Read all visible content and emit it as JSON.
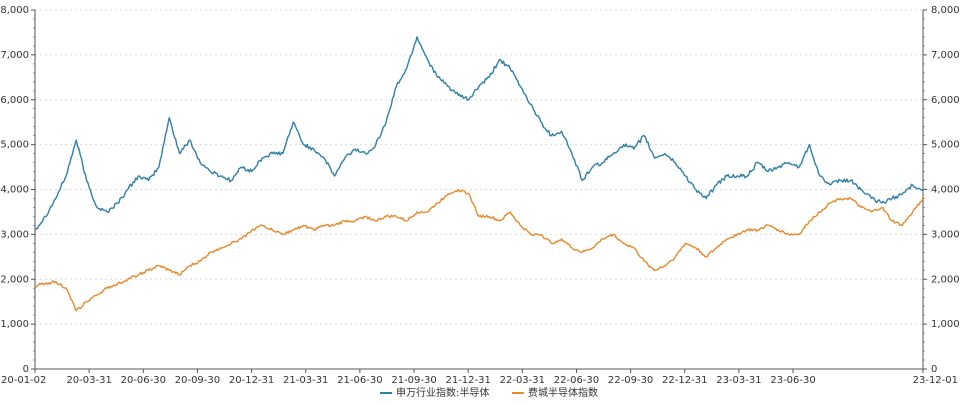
{
  "chart_data": {
    "type": "line",
    "title": "",
    "xlabel": "",
    "ylabel": "",
    "ylim": [
      0,
      8000
    ],
    "y_ticks": [
      "0",
      "1,000",
      "2,000",
      "3,000",
      "4,000",
      "5,000",
      "6,000",
      "7,000",
      "8,000"
    ],
    "x_ticks": [
      "20-01-02",
      "20-03-31",
      "20-06-30",
      "20-09-30",
      "20-12-31",
      "21-03-31",
      "21-06-30",
      "21-09-30",
      "21-12-31",
      "22-03-31",
      "22-06-30",
      "22-09-30",
      "22-12-31",
      "23-03-31",
      "23-06-30",
      "23-12-01"
    ],
    "dual_axis": true,
    "grid": "horizontal dashed",
    "legend_position": "bottom-center",
    "series": [
      {
        "name": "申万行业指数:半导体",
        "color": "#2f7fa8",
        "values": [
          3100,
          3400,
          3800,
          4300,
          5100,
          4200,
          3600,
          3500,
          3700,
          4000,
          4300,
          4200,
          4500,
          5600,
          4800,
          5100,
          4600,
          4400,
          4300,
          4200,
          4500,
          4400,
          4700,
          4800,
          4800,
          5500,
          5000,
          4900,
          4700,
          4300,
          4700,
          4900,
          4800,
          5000,
          5500,
          6300,
          6700,
          7400,
          6900,
          6500,
          6300,
          6100,
          6000,
          6300,
          6500,
          6900,
          6700,
          6300,
          5900,
          5500,
          5200,
          5300,
          4800,
          4200,
          4500,
          4600,
          4800,
          5000,
          4900,
          5200,
          4700,
          4800,
          4600,
          4300,
          4000,
          3800,
          4100,
          4300,
          4300,
          4300,
          4600,
          4400,
          4500,
          4600,
          4500,
          5000,
          4300,
          4100,
          4200,
          4200,
          4000,
          3800,
          3700,
          3800,
          3900,
          4100,
          4000
        ]
      },
      {
        "name": "费城半导体指数",
        "color": "#e8892b",
        "values": [
          1850,
          1900,
          1950,
          1800,
          1300,
          1500,
          1650,
          1800,
          1900,
          2000,
          2100,
          2200,
          2300,
          2200,
          2100,
          2300,
          2400,
          2600,
          2700,
          2800,
          2900,
          3100,
          3200,
          3100,
          3000,
          3100,
          3200,
          3100,
          3200,
          3200,
          3300,
          3300,
          3400,
          3300,
          3400,
          3400,
          3300,
          3500,
          3500,
          3700,
          3900,
          4000,
          3900,
          3400,
          3400,
          3300,
          3500,
          3200,
          3000,
          3000,
          2800,
          2900,
          2700,
          2600,
          2700,
          2900,
          3000,
          2800,
          2700,
          2400,
          2200,
          2300,
          2500,
          2800,
          2700,
          2500,
          2700,
          2900,
          3000,
          3100,
          3100,
          3200,
          3100,
          3000,
          3000,
          3300,
          3500,
          3700,
          3800,
          3800,
          3600,
          3500,
          3600,
          3300,
          3200,
          3500,
          3800
        ]
      }
    ]
  }
}
